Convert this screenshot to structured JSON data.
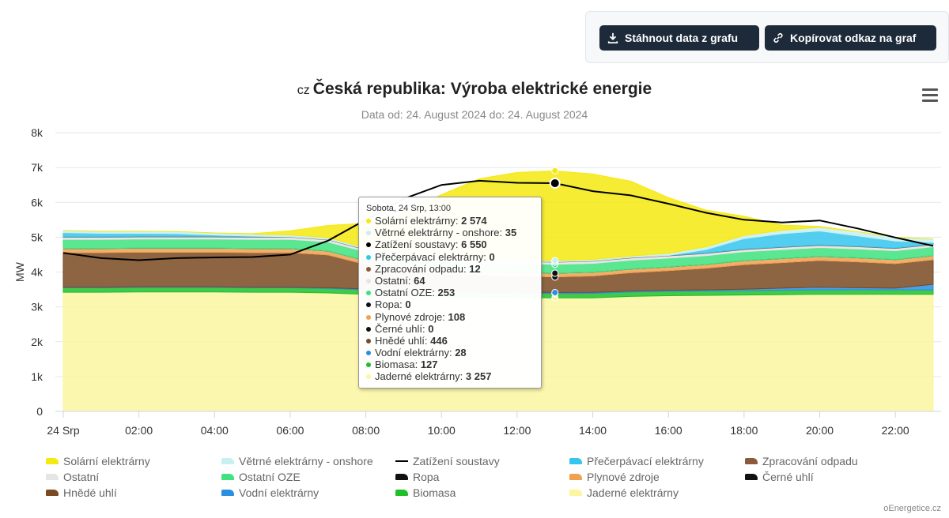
{
  "buttons": {
    "download_label": "Stáhnout data z grafu",
    "copy_label": "Kopírovat odkaz na graf"
  },
  "title_prefix": "cz",
  "title": "Česká republika: Výroba elektrické energie",
  "subtitle": "Data od: 24. August 2024 do: 24. August 2024",
  "credit": "oEnergetice.cz",
  "tooltip": {
    "header": "Sobota, 24 Srp, 13:00",
    "rows": [
      {
        "name": "Solární elektrárny",
        "value": "2 574",
        "color": "#f5e90f"
      },
      {
        "name": "Větrné elektrárny - onshore",
        "value": "35",
        "color": "#c8f0f0"
      },
      {
        "name": "Zatížení soustavy",
        "value": "6 550",
        "color": "#000000"
      },
      {
        "name": "Přečerpávací elektrárny",
        "value": "0",
        "color": "#35c5ee"
      },
      {
        "name": "Zpracování odpadu",
        "value": "12",
        "color": "#8a5a3c"
      },
      {
        "name": "Ostatní",
        "value": "64",
        "color": "#e5e5e5"
      },
      {
        "name": "Ostatní OZE",
        "value": "253",
        "color": "#3ee27e"
      },
      {
        "name": "Ropa",
        "value": "0",
        "color": "#111111"
      },
      {
        "name": "Plynové zdroje",
        "value": "108",
        "color": "#f0a050"
      },
      {
        "name": "Černé uhlí",
        "value": "0",
        "color": "#111111"
      },
      {
        "name": "Hnědé uhlí",
        "value": "446",
        "color": "#7a4a22"
      },
      {
        "name": "Vodní elektrárny",
        "value": "28",
        "color": "#2a8fe0"
      },
      {
        "name": "Biomasa",
        "value": "127",
        "color": "#1fbf2a"
      },
      {
        "name": "Jaderné elektrárny",
        "value": "3 257",
        "color": "#fbf6a0"
      }
    ]
  },
  "chart_data": {
    "type": "area",
    "stacked": true,
    "xlabel": "",
    "ylabel": "MW",
    "ylim": [
      0,
      8000
    ],
    "yticks": [
      0,
      1000,
      2000,
      3000,
      4000,
      5000,
      6000,
      7000,
      8000
    ],
    "ytick_labels": [
      "0",
      "1k",
      "2k",
      "3k",
      "4k",
      "5k",
      "6k",
      "7k",
      "8k"
    ],
    "xticks": [
      0,
      2,
      4,
      6,
      8,
      10,
      12,
      14,
      16,
      18,
      20,
      22
    ],
    "xtick_labels": [
      "24 Srp",
      "02:00",
      "04:00",
      "06:00",
      "08:00",
      "10:00",
      "12:00",
      "14:00",
      "16:00",
      "18:00",
      "20:00",
      "22:00"
    ],
    "x": [
      0,
      1,
      2,
      3,
      4,
      5,
      6,
      7,
      8,
      9,
      10,
      11,
      12,
      13,
      14,
      15,
      16,
      17,
      18,
      19,
      20,
      21,
      22,
      23
    ],
    "grid": true,
    "legend_position": "bottom",
    "series": [
      {
        "name": "Jaderné elektrárny",
        "color": "#fbf6a0",
        "values": [
          3420,
          3420,
          3430,
          3430,
          3430,
          3420,
          3420,
          3400,
          3360,
          3320,
          3290,
          3280,
          3270,
          3257,
          3260,
          3300,
          3320,
          3330,
          3340,
          3350,
          3360,
          3360,
          3360,
          3360
        ]
      },
      {
        "name": "Biomasa",
        "color": "#1fbf2a",
        "values": [
          130,
          130,
          130,
          130,
          130,
          130,
          130,
          128,
          128,
          127,
          127,
          127,
          127,
          127,
          127,
          127,
          127,
          127,
          128,
          128,
          128,
          128,
          128,
          128
        ]
      },
      {
        "name": "Vodní elektrárny",
        "color": "#2a8fe0",
        "values": [
          15,
          15,
          15,
          15,
          15,
          15,
          15,
          20,
          25,
          28,
          28,
          28,
          28,
          28,
          28,
          30,
          30,
          30,
          40,
          60,
          80,
          60,
          50,
          160
        ]
      },
      {
        "name": "Hnědé uhlí",
        "color": "#7a4a22",
        "values": [
          990,
          990,
          990,
          990,
          990,
          990,
          990,
          940,
          700,
          560,
          500,
          470,
          460,
          446,
          470,
          520,
          560,
          620,
          700,
          730,
          760,
          740,
          700,
          700
        ]
      },
      {
        "name": "Černé uhlí",
        "color": "#111111",
        "values": [
          0,
          0,
          0,
          0,
          0,
          0,
          0,
          0,
          0,
          0,
          0,
          0,
          0,
          0,
          0,
          0,
          0,
          0,
          0,
          0,
          0,
          0,
          0,
          0
        ]
      },
      {
        "name": "Plynové zdroje",
        "color": "#f0a050",
        "values": [
          120,
          120,
          120,
          120,
          120,
          120,
          120,
          115,
          110,
          108,
          108,
          108,
          108,
          108,
          108,
          110,
          110,
          110,
          120,
          120,
          120,
          120,
          120,
          120
        ]
      },
      {
        "name": "Ropa",
        "color": "#111111",
        "values": [
          0,
          0,
          0,
          0,
          0,
          0,
          0,
          0,
          0,
          0,
          0,
          0,
          0,
          0,
          0,
          0,
          0,
          0,
          0,
          0,
          0,
          0,
          0,
          0
        ]
      },
      {
        "name": "Ostatní OZE",
        "color": "#3ee27e",
        "values": [
          260,
          260,
          260,
          260,
          260,
          260,
          260,
          258,
          255,
          253,
          253,
          253,
          253,
          253,
          253,
          253,
          253,
          253,
          255,
          255,
          255,
          255,
          255,
          255
        ]
      },
      {
        "name": "Ostatní",
        "color": "#e5e5e5",
        "values": [
          64,
          64,
          64,
          64,
          64,
          64,
          64,
          64,
          64,
          64,
          64,
          64,
          64,
          64,
          64,
          64,
          64,
          64,
          64,
          64,
          64,
          64,
          64,
          64
        ]
      },
      {
        "name": "Zpracování odpadu",
        "color": "#8a5a3c",
        "values": [
          12,
          12,
          12,
          12,
          12,
          12,
          12,
          12,
          12,
          12,
          12,
          12,
          12,
          12,
          12,
          12,
          12,
          12,
          12,
          12,
          12,
          12,
          12,
          12
        ]
      },
      {
        "name": "Přečerpávací elektrárny",
        "color": "#35c5ee",
        "values": [
          120,
          100,
          90,
          80,
          40,
          20,
          0,
          0,
          0,
          0,
          0,
          0,
          0,
          0,
          0,
          0,
          0,
          100,
          300,
          380,
          400,
          300,
          200,
          50
        ]
      },
      {
        "name": "Větrné elektrárny - onshore",
        "color": "#c8f0f0",
        "values": [
          60,
          60,
          60,
          60,
          60,
          60,
          55,
          50,
          45,
          40,
          38,
          36,
          35,
          35,
          40,
          45,
          60,
          80,
          90,
          100,
          110,
          120,
          110,
          100
        ]
      },
      {
        "name": "Solární elektrárny",
        "color": "#f5e90f",
        "values": [
          0,
          0,
          0,
          0,
          0,
          10,
          120,
          350,
          700,
          1200,
          1800,
          2300,
          2500,
          2574,
          2450,
          2150,
          1600,
          1050,
          550,
          150,
          20,
          0,
          0,
          0
        ]
      }
    ],
    "line_series": {
      "name": "Zatížení soustavy",
      "color": "#000000",
      "values": [
        4550,
        4400,
        4340,
        4400,
        4420,
        4430,
        4500,
        4900,
        5500,
        6100,
        6500,
        6620,
        6560,
        6550,
        6320,
        6200,
        5960,
        5700,
        5500,
        5420,
        5480,
        5250,
        4990,
        4750
      ]
    },
    "highlight_x": 13
  },
  "legend": [
    {
      "name": "Solární elektrárny",
      "color": "#f5e90f",
      "type": "area"
    },
    {
      "name": "Větrné elektrárny - onshore",
      "color": "#c8f0f0",
      "type": "area"
    },
    {
      "name": "Zatížení soustavy",
      "color": "#000000",
      "type": "line"
    },
    {
      "name": "Přečerpávací elektrárny",
      "color": "#35c5ee",
      "type": "area"
    },
    {
      "name": "Zpracování odpadu",
      "color": "#8a5a3c",
      "type": "area"
    },
    {
      "name": "Ostatní",
      "color": "#e5e5e5",
      "type": "area"
    },
    {
      "name": "Ostatní OZE",
      "color": "#3ee27e",
      "type": "area"
    },
    {
      "name": "Ropa",
      "color": "#111111",
      "type": "area"
    },
    {
      "name": "Plynové zdroje",
      "color": "#f0a050",
      "type": "area"
    },
    {
      "name": "Černé uhlí",
      "color": "#111111",
      "type": "area"
    },
    {
      "name": "Hnědé uhlí",
      "color": "#7a4a22",
      "type": "area"
    },
    {
      "name": "Vodní elektrárny",
      "color": "#2a8fe0",
      "type": "area"
    },
    {
      "name": "Biomasa",
      "color": "#1fbf2a",
      "type": "area"
    },
    {
      "name": "Jaderné elektrárny",
      "color": "#fbf6a0",
      "type": "area"
    }
  ]
}
